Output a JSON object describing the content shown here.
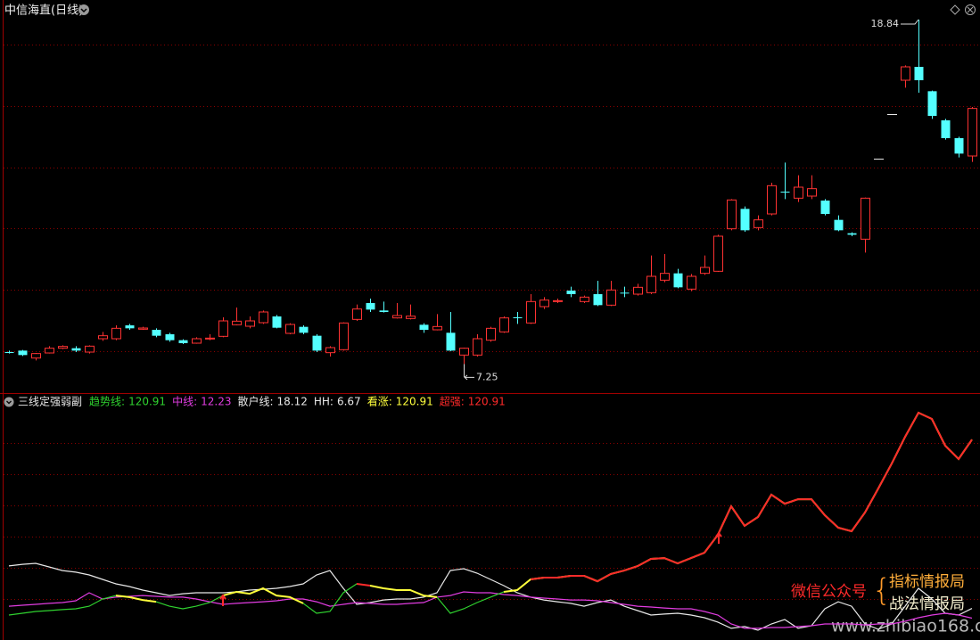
{
  "chart_data": [
    {
      "type": "candlestick",
      "title": "中信海直(日线)",
      "open": [
        7.65,
        7.7,
        7.45,
        7.62,
        7.78,
        7.78,
        7.65,
        8.1,
        8.1,
        8.55,
        8.42,
        8.4,
        8.25,
        8.05,
        7.95,
        8.1,
        8.18,
        8.57,
        8.52,
        8.64,
        8.85,
        8.28,
        8.5,
        8.2,
        7.63,
        7.73,
        8.75,
        9.3,
        9.05,
        8.8,
        8.78,
        8.57,
        8.4,
        8.3,
        7.55,
        7.55,
        8.05,
        8.33,
        8.82,
        8.63,
        9.18,
        9.35,
        9.72,
        9.35,
        9.6,
        9.23,
        9.65,
        9.6,
        9.65,
        10.07,
        10.3,
        9.77,
        10.3,
        10.37,
        11.8,
        12.47,
        11.84,
        12.3,
        13.05,
        12.83,
        12.9,
        12.75,
        12.1,
        11.65,
        11.45,
        null,
        null,
        16.8,
        17.25,
        16.43,
        15.45,
        14.85,
        14.25
      ],
      "high": [
        7.7,
        7.72,
        7.62,
        7.85,
        7.88,
        7.85,
        7.88,
        8.33,
        8.55,
        8.6,
        8.5,
        8.45,
        8.3,
        8.08,
        8.15,
        8.25,
        8.82,
        9.15,
        8.85,
        9.05,
        8.9,
        8.62,
        8.55,
        8.25,
        7.85,
        8.65,
        9.25,
        9.45,
        9.35,
        9.3,
        9.25,
        8.62,
        8.93,
        9.0,
        7.8,
        8.25,
        8.5,
        8.85,
        9.0,
        9.6,
        9.5,
        9.45,
        9.85,
        9.55,
        10.05,
        10.05,
        9.85,
        9.95,
        10.9,
        10.95,
        10.45,
        10.28,
        10.9,
        11.6,
        12.8,
        12.55,
        12.25,
        13.35,
        14.03,
        13.6,
        13.6,
        12.8,
        12.25,
        11.68,
        12.85,
        null,
        null,
        17.3,
        18.84,
        16.45,
        15.5,
        14.9,
        15.9
      ],
      "low": [
        7.6,
        7.52,
        7.37,
        7.6,
        7.75,
        7.65,
        7.6,
        8.03,
        8.05,
        8.4,
        8.4,
        8.15,
        8.0,
        7.92,
        7.93,
        8.05,
        8.15,
        8.55,
        8.45,
        8.6,
        8.45,
        8.25,
        8.25,
        7.65,
        7.5,
        7.7,
        8.7,
        9.0,
        8.98,
        8.78,
        8.75,
        8.3,
        8.38,
        7.68,
        7.25,
        7.5,
        8.0,
        8.3,
        8.6,
        8.6,
        9.1,
        9.3,
        9.5,
        9.3,
        9.2,
        9.2,
        9.5,
        9.55,
        9.6,
        10.0,
        9.8,
        9.7,
        10.25,
        10.35,
        11.75,
        11.7,
        11.75,
        12.25,
        12.8,
        12.7,
        12.8,
        12.25,
        11.72,
        11.55,
        11.0,
        null,
        null,
        16.55,
        16.38,
        15.5,
        14.8,
        14.2,
        14.05
      ],
      "close": [
        7.64,
        7.55,
        7.6,
        7.78,
        7.84,
        7.7,
        7.85,
        8.2,
        8.45,
        8.45,
        8.46,
        8.2,
        8.05,
        7.95,
        8.1,
        8.12,
        8.7,
        8.69,
        8.7,
        9.0,
        8.47,
        8.58,
        8.3,
        7.7,
        7.8,
        8.63,
        9.1,
        9.08,
        9.0,
        8.88,
        8.86,
        8.4,
        8.51,
        7.7,
        7.78,
        8.1,
        8.45,
        8.8,
        8.8,
        9.35,
        9.4,
        9.38,
        9.6,
        9.5,
        9.23,
        9.74,
        9.62,
        9.83,
        10.2,
        10.3,
        9.83,
        10.2,
        10.5,
        11.55,
        12.77,
        11.75,
        12.1,
        13.25,
        13.02,
        13.2,
        13.15,
        12.3,
        11.75,
        11.6,
        12.83,
        null,
        null,
        17.25,
        16.8,
        15.6,
        14.85,
        14.33,
        15.85
      ],
      "up_color": "#ff3232",
      "down_color": "#54ffff",
      "ylim": [
        6.3,
        19.5
      ]
    },
    {
      "type": "line",
      "title": "三线定强弱副",
      "series": [
        {
          "name": "趋势线:",
          "color": "#2fd22f",
          "values": [
            14.1,
            15.2,
            16.3,
            16.8,
            17.4,
            17.9,
            19.5,
            23.9,
            26.0,
            25.0,
            23.3,
            22.2,
            19.5,
            17.9,
            19.5,
            21.7,
            26.0,
            28.2,
            27.1,
            30.4,
            26.0,
            25.0,
            21.2,
            15.2,
            16.3,
            27.7,
            33.1,
            32.0,
            30.4,
            29.3,
            29.3,
            26.0,
            25.0,
            15.2,
            17.9,
            21.7,
            25.0,
            28.2,
            29.3,
            35.8,
            36.9,
            36.9,
            38.0,
            38.0,
            34.7,
            39.1,
            41.2,
            43.9,
            48.3,
            48.8,
            45.6,
            48.8,
            52.1,
            62.9,
            80.3,
            68.4,
            73.8,
            87.4,
            81.9,
            84.6,
            84.6,
            74.9,
            67.3,
            65.1,
            76.5,
            91.2,
            106.3,
            122.6,
            137.3,
            133.5,
            117.2,
            109.1,
            120.91
          ]
        },
        {
          "name": "中线:",
          "color": "#e13ce1",
          "values": [
            19.5,
            20.1,
            20.6,
            21.2,
            21.7,
            22.8,
            27.7,
            23.9,
            25.0,
            25.5,
            26.0,
            25.5,
            25.0,
            25.0,
            23.9,
            22.2,
            20.6,
            21.2,
            21.7,
            22.2,
            22.8,
            23.9,
            23.9,
            22.2,
            19.5,
            20.6,
            21.7,
            21.2,
            20.6,
            20.6,
            21.2,
            21.7,
            25.0,
            26.0,
            28.2,
            27.7,
            27.7,
            26.6,
            26.0,
            25.0,
            24.4,
            23.9,
            23.3,
            23.3,
            22.8,
            21.7,
            20.6,
            19.5,
            19.0,
            18.4,
            17.9,
            17.9,
            16.3,
            14.1,
            8.7,
            6.0,
            6.0,
            6.5,
            6.5,
            7.1,
            7.6,
            8.7,
            8.7,
            8.7,
            8.1,
            8.7,
            8.7,
            10.3,
            12.5,
            14.1,
            15.2,
            14.1,
            12.23
          ]
        },
        {
          "name": "散户线:",
          "color": "#e8e8e8",
          "values": [
            44.0,
            45.0,
            45.6,
            43.4,
            41.2,
            40.2,
            38.5,
            35.8,
            33.1,
            31.5,
            29.3,
            27.7,
            26.0,
            27.1,
            27.7,
            27.7,
            27.7,
            28.2,
            29.3,
            29.8,
            30.4,
            31.5,
            33.1,
            38.5,
            41.2,
            30.4,
            20.6,
            21.7,
            23.3,
            23.9,
            23.9,
            25.0,
            27.7,
            41.2,
            42.3,
            39.6,
            35.8,
            32.0,
            27.7,
            25.0,
            23.3,
            22.2,
            21.2,
            19.5,
            21.7,
            23.3,
            19.5,
            16.8,
            14.1,
            14.7,
            15.2,
            14.1,
            12.5,
            9.8,
            6.0,
            7.1,
            4.9,
            8.7,
            11.4,
            6.0,
            7.6,
            17.9,
            22.2,
            19.5,
            8.7,
            5.4,
            8.7,
            19.5,
            30.4,
            23.9,
            15.2,
            14.1,
            18.12
          ]
        },
        {
          "name": "看涨:",
          "color": "#ffff3c",
          "values": [
            null,
            null,
            null,
            null,
            null,
            null,
            null,
            null,
            26.0,
            25.0,
            23.3,
            22.2,
            null,
            null,
            null,
            null,
            26.0,
            28.2,
            27.1,
            30.4,
            26.0,
            25.0,
            21.2,
            null,
            null,
            null,
            null,
            32.0,
            30.4,
            29.3,
            29.3,
            26.0,
            25.0,
            null,
            null,
            null,
            null,
            28.2,
            29.3,
            35.8,
            36.9,
            36.9,
            38.0,
            38.0,
            34.7,
            39.1,
            41.2,
            43.9,
            48.3,
            48.8,
            45.6,
            48.8,
            52.1,
            62.9,
            80.3,
            68.4,
            73.8,
            87.4,
            81.9,
            84.6,
            84.6,
            74.9,
            67.3,
            65.1,
            76.5,
            91.2,
            106.3,
            122.6,
            137.3,
            133.5,
            117.2,
            109.1,
            120.91
          ]
        },
        {
          "name": "超强:",
          "color": "#ff2a2a",
          "values": [
            null,
            null,
            null,
            null,
            null,
            null,
            null,
            null,
            null,
            null,
            null,
            null,
            null,
            null,
            null,
            null,
            null,
            null,
            null,
            null,
            null,
            null,
            null,
            null,
            null,
            null,
            33.1,
            32.0,
            null,
            null,
            null,
            null,
            null,
            null,
            null,
            null,
            null,
            null,
            null,
            35.8,
            36.9,
            36.9,
            38.0,
            38.0,
            34.7,
            39.1,
            41.2,
            43.9,
            48.3,
            48.8,
            45.6,
            48.8,
            52.1,
            62.9,
            80.3,
            68.4,
            73.8,
            87.4,
            81.9,
            84.6,
            84.6,
            74.9,
            67.3,
            65.1,
            76.5,
            91.2,
            106.3,
            122.6,
            137.3,
            133.5,
            117.2,
            109.1,
            120.91
          ]
        }
      ],
      "readouts": [
        {
          "name": "HH:",
          "value": 6.67
        }
      ],
      "ylim": [
        0,
        140
      ]
    }
  ],
  "watermark": {
    "label": "微信公众号",
    "lines": [
      "指标情报局",
      "战法情报局"
    ],
    "url": "www.zhibiao168.com"
  }
}
